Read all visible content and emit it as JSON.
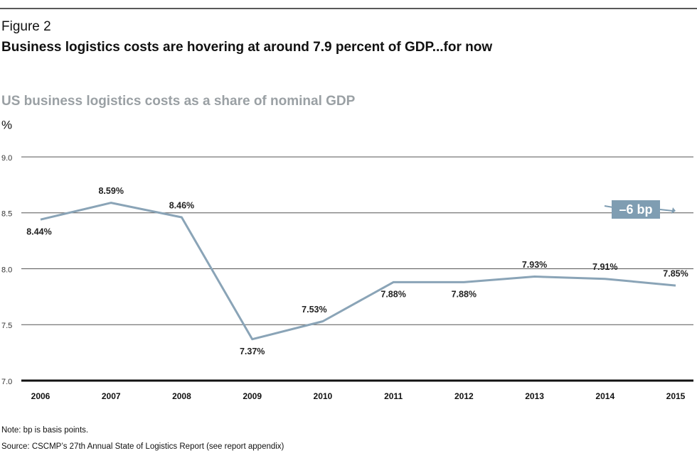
{
  "chart_data": {
    "type": "line",
    "figure_label": "Figure 2",
    "title": "Business logistics costs are hovering at around 7.9 percent of GDP...for now",
    "subtitle": "US business logistics costs as a share of nominal GDP",
    "y_unit": "%",
    "categories": [
      "2006",
      "2007",
      "2008",
      "2009",
      "2010",
      "2011",
      "2012",
      "2013",
      "2014",
      "2015"
    ],
    "values": [
      8.44,
      8.59,
      8.46,
      7.37,
      7.53,
      7.88,
      7.88,
      7.93,
      7.91,
      7.85
    ],
    "value_labels": [
      "8.44%",
      "8.59%",
      "8.46%",
      "7.37%",
      "7.53%",
      "7.88%",
      "7.88%",
      "7.93%",
      "7.91%",
      "7.85%"
    ],
    "color": "#8aa4b7",
    "ylim": [
      7.0,
      9.0
    ],
    "yticks": [
      {
        "value": 7.0,
        "label": "7.0"
      },
      7.5,
      {
        "value": 8.0,
        "label": "8.0"
      },
      8.5,
      {
        "value": 9.0,
        "label": "9.0"
      }
    ],
    "grid": true,
    "annotation": "–6 bp",
    "note": "Note: bp is basis points.",
    "source": "Source: CSCMP’s 27th Annual State of Logistics Report (see report appendix)"
  }
}
